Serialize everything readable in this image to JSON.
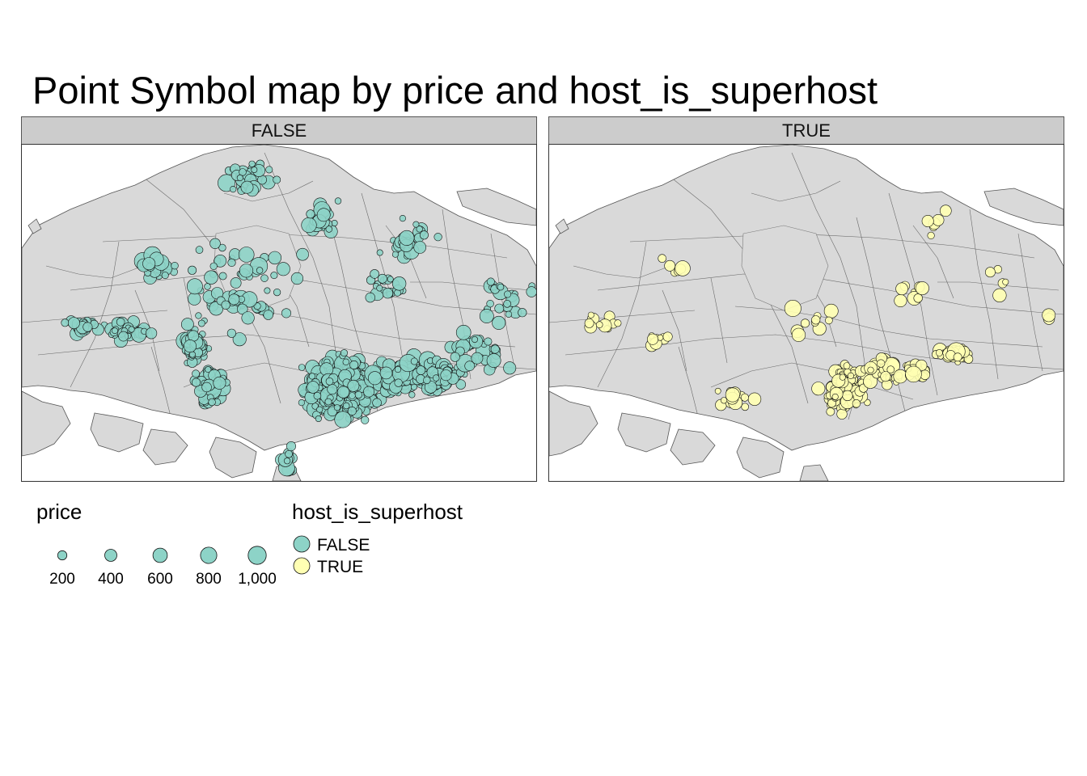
{
  "title": "Point Symbol map by price and host_is_superhost",
  "panels": [
    {
      "label": "FALSE",
      "fill": "#8dd3c7"
    },
    {
      "label": "TRUE",
      "fill": "#ffffb3"
    }
  ],
  "legend": {
    "size_title": "price",
    "size_breaks": [
      "200",
      "400",
      "600",
      "800",
      "1,000"
    ],
    "size_values": [
      200,
      400,
      600,
      800,
      1000
    ],
    "color_title": "host_is_superhost",
    "color_items": [
      {
        "label": "FALSE",
        "fill": "#8dd3c7"
      },
      {
        "label": "TRUE",
        "fill": "#ffffb3"
      }
    ]
  },
  "colors": {
    "land": "#d9d9d9",
    "border": "#555555",
    "sea": "#ffffff"
  }
}
